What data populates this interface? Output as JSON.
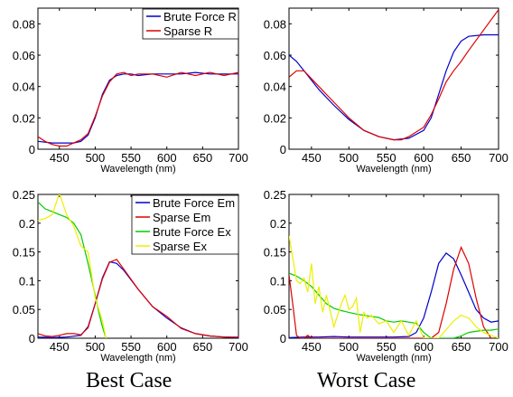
{
  "captions": {
    "left": "Best Case",
    "right": "Worst Case"
  },
  "chart_data": [
    {
      "type": "line",
      "xlabel": "Wavelength (nm)",
      "xlim": [
        420,
        700
      ],
      "ylim": [
        0,
        0.09
      ],
      "xticks": [
        450,
        500,
        550,
        600,
        650,
        700
      ],
      "yticks": [
        0,
        0.02,
        0.04,
        0.06,
        0.08
      ],
      "ytick_labels": [
        "0",
        "0.02",
        "0.04",
        "0.06",
        "0.08"
      ],
      "legend": "top-right",
      "series": [
        {
          "name": "Brute Force R",
          "color": "#0000cc",
          "x": [
            420,
            440,
            460,
            470,
            480,
            490,
            500,
            510,
            520,
            530,
            540,
            550,
            560,
            580,
            600,
            620,
            640,
            660,
            680,
            700
          ],
          "y": [
            0.005,
            0.004,
            0.004,
            0.004,
            0.005,
            0.009,
            0.02,
            0.035,
            0.044,
            0.047,
            0.048,
            0.048,
            0.047,
            0.048,
            0.048,
            0.048,
            0.049,
            0.048,
            0.048,
            0.048
          ]
        },
        {
          "name": "Sparse R",
          "color": "#dd0000",
          "x": [
            420,
            430,
            440,
            450,
            460,
            470,
            480,
            490,
            500,
            510,
            520,
            530,
            540,
            550,
            560,
            580,
            600,
            620,
            640,
            660,
            680,
            700
          ],
          "y": [
            0.008,
            0.005,
            0.003,
            0.002,
            0.002,
            0.004,
            0.006,
            0.01,
            0.021,
            0.034,
            0.043,
            0.048,
            0.049,
            0.047,
            0.048,
            0.048,
            0.046,
            0.049,
            0.047,
            0.049,
            0.047,
            0.049
          ]
        }
      ]
    },
    {
      "type": "line",
      "xlabel": "Wavelength (nm)",
      "xlim": [
        420,
        700
      ],
      "ylim": [
        0,
        0.09
      ],
      "xticks": [
        450,
        500,
        550,
        600,
        650,
        700
      ],
      "yticks": [
        0,
        0.02,
        0.04,
        0.06,
        0.08
      ],
      "ytick_labels": [
        "0",
        "0.02",
        "0.04",
        "0.06",
        "0.08"
      ],
      "series": [
        {
          "name": "Brute Force R",
          "color": "#0000cc",
          "x": [
            420,
            430,
            440,
            460,
            480,
            500,
            520,
            540,
            560,
            580,
            600,
            610,
            620,
            630,
            640,
            650,
            660,
            680,
            700
          ],
          "y": [
            0.06,
            0.056,
            0.05,
            0.038,
            0.028,
            0.019,
            0.012,
            0.008,
            0.006,
            0.007,
            0.012,
            0.02,
            0.035,
            0.05,
            0.062,
            0.069,
            0.072,
            0.073,
            0.073
          ]
        },
        {
          "name": "Sparse R",
          "color": "#dd0000",
          "x": [
            420,
            430,
            440,
            460,
            480,
            500,
            520,
            540,
            560,
            570,
            580,
            600,
            610,
            620,
            630,
            640,
            650,
            660,
            680,
            700
          ],
          "y": [
            0.046,
            0.05,
            0.05,
            0.04,
            0.03,
            0.02,
            0.012,
            0.008,
            0.006,
            0.006,
            0.008,
            0.014,
            0.022,
            0.032,
            0.043,
            0.05,
            0.056,
            0.063,
            0.076,
            0.089
          ]
        }
      ]
    },
    {
      "type": "line",
      "xlabel": "Wavelength (nm)",
      "xlim": [
        420,
        700
      ],
      "ylim": [
        0,
        0.25
      ],
      "xticks": [
        450,
        500,
        550,
        600,
        650,
        700
      ],
      "yticks": [
        0,
        0.05,
        0.1,
        0.15,
        0.2,
        0.25
      ],
      "ytick_labels": [
        "0",
        "0.05",
        "0.1",
        "0.15",
        "0.2",
        "0.25"
      ],
      "legend": "top-right",
      "series": [
        {
          "name": "Brute Force Em",
          "color": "#0000cc",
          "x": [
            420,
            440,
            460,
            480,
            490,
            500,
            510,
            520,
            530,
            540,
            560,
            580,
            600,
            620,
            640,
            660,
            680,
            700
          ],
          "y": [
            0.002,
            0.001,
            0.002,
            0.005,
            0.02,
            0.06,
            0.105,
            0.133,
            0.13,
            0.118,
            0.085,
            0.055,
            0.035,
            0.018,
            0.008,
            0.004,
            0.002,
            0.001
          ]
        },
        {
          "name": "Sparse Em",
          "color": "#dd0000",
          "x": [
            420,
            430,
            440,
            450,
            460,
            470,
            480,
            490,
            500,
            510,
            520,
            530,
            540,
            560,
            580,
            600,
            620,
            640,
            660,
            680,
            700
          ],
          "y": [
            0.008,
            0.004,
            0.003,
            0.005,
            0.008,
            0.008,
            0.006,
            0.018,
            0.06,
            0.103,
            0.132,
            0.137,
            0.12,
            0.085,
            0.055,
            0.038,
            0.017,
            0.008,
            0.004,
            0.002,
            0.002
          ]
        },
        {
          "name": "Brute Force Ex",
          "color": "#00cc00",
          "x": [
            420,
            430,
            440,
            450,
            460,
            470,
            480,
            490,
            500,
            505,
            510,
            515
          ],
          "y": [
            0.237,
            0.225,
            0.22,
            0.215,
            0.21,
            0.2,
            0.18,
            0.13,
            0.075,
            0.045,
            0.02,
            0.0
          ]
        },
        {
          "name": "Sparse Ex",
          "color": "#eeee00",
          "x": [
            420,
            430,
            440,
            450,
            460,
            470,
            480,
            490,
            500,
            510,
            515
          ],
          "y": [
            0.205,
            0.208,
            0.215,
            0.252,
            0.215,
            0.195,
            0.16,
            0.15,
            0.07,
            0.03,
            0.0
          ]
        }
      ]
    },
    {
      "type": "line",
      "xlabel": "Wavelength (nm)",
      "xlim": [
        420,
        700
      ],
      "ylim": [
        0,
        0.25
      ],
      "xticks": [
        450,
        500,
        550,
        600,
        650,
        700
      ],
      "yticks": [
        0,
        0.05,
        0.1,
        0.15,
        0.2,
        0.25
      ],
      "ytick_labels": [
        "0",
        "0.05",
        "0.1",
        "0.15",
        "0.2",
        "0.25"
      ],
      "series": [
        {
          "name": "Brute Force Em",
          "color": "#0000cc",
          "x": [
            420,
            440,
            460,
            480,
            500,
            520,
            540,
            560,
            580,
            590,
            600,
            610,
            620,
            630,
            640,
            650,
            660,
            670,
            680,
            690,
            700
          ],
          "y": [
            0.001,
            0.002,
            0.002,
            0.003,
            0.002,
            0.002,
            0.002,
            0.002,
            0.003,
            0.01,
            0.035,
            0.08,
            0.13,
            0.148,
            0.138,
            0.11,
            0.08,
            0.05,
            0.035,
            0.028,
            0.03
          ]
        },
        {
          "name": "Sparse Em",
          "color": "#dd0000",
          "x": [
            420,
            425,
            430,
            435,
            440,
            445,
            450,
            460,
            470,
            480,
            500,
            520,
            540,
            560,
            580,
            600,
            610,
            620,
            630,
            640,
            650,
            660,
            670,
            680,
            690
          ],
          "y": [
            0.11,
            0.06,
            0.005,
            0.0,
            0.0,
            0.005,
            0.0,
            0.0,
            0.0,
            0.0,
            0.0,
            0.0,
            0.0,
            0.0,
            0.0,
            0.0,
            0.0,
            0.01,
            0.06,
            0.12,
            0.158,
            0.13,
            0.07,
            0.02,
            0.0
          ]
        },
        {
          "name": "Brute Force Ex",
          "color": "#00cc00",
          "x": [
            420,
            430,
            440,
            450,
            460,
            470,
            480,
            490,
            500,
            510,
            520,
            530,
            540,
            550,
            560,
            570,
            580,
            590,
            600,
            610,
            620,
            630,
            640,
            650,
            660,
            670,
            680,
            690,
            700
          ],
          "y": [
            0.113,
            0.108,
            0.1,
            0.09,
            0.075,
            0.06,
            0.052,
            0.048,
            0.045,
            0.042,
            0.04,
            0.038,
            0.036,
            0.03,
            0.028,
            0.03,
            0.028,
            0.026,
            0.01,
            0.0,
            0.0,
            0.0,
            0.0,
            0.004,
            0.01,
            0.012,
            0.014,
            0.014,
            0.016
          ]
        },
        {
          "name": "Sparse Ex",
          "color": "#eeee00",
          "x": [
            420,
            425,
            430,
            435,
            440,
            445,
            450,
            455,
            460,
            465,
            470,
            480,
            490,
            495,
            500,
            505,
            510,
            515,
            520,
            525,
            530,
            540,
            550,
            560,
            570,
            580,
            590,
            600,
            610,
            620,
            630,
            640,
            650,
            660,
            670,
            680,
            690,
            700
          ],
          "y": [
            0.178,
            0.14,
            0.1,
            0.095,
            0.105,
            0.08,
            0.13,
            0.06,
            0.09,
            0.045,
            0.075,
            0.02,
            0.06,
            0.075,
            0.05,
            0.055,
            0.07,
            0.01,
            0.045,
            0.035,
            0.04,
            0.025,
            0.03,
            0.01,
            0.03,
            0.005,
            0.03,
            0.0,
            0.0,
            0.0,
            0.015,
            0.03,
            0.04,
            0.035,
            0.02,
            0.01,
            0.005,
            0.0
          ]
        }
      ]
    }
  ]
}
